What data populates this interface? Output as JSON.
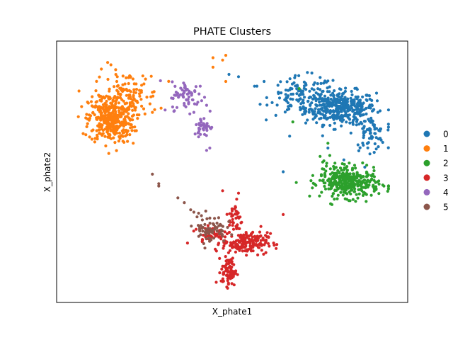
{
  "chart_data": {
    "type": "scatter",
    "title": "PHATE Clusters",
    "xlabel": "X_phate1",
    "ylabel": "X_phate2",
    "xlim": [
      -0.05,
      1.05
    ],
    "ylim": [
      -0.05,
      1.05
    ],
    "grid": false,
    "legend_position": "right",
    "series": [
      {
        "name": "0",
        "color": "#1f77b4",
        "clusters": [
          {
            "cx": 0.84,
            "cy": 0.77,
            "sx": 0.055,
            "sy": 0.035,
            "n": 380
          },
          {
            "cx": 0.72,
            "cy": 0.82,
            "sx": 0.05,
            "sy": 0.04,
            "n": 120
          },
          {
            "cx": 0.93,
            "cy": 0.66,
            "sx": 0.025,
            "sy": 0.035,
            "n": 70
          }
        ],
        "points": [
          [
            0.6,
            0.88
          ],
          [
            0.57,
            0.86
          ],
          [
            0.52,
            0.9
          ],
          [
            0.49,
            0.91
          ],
          [
            0.68,
            0.65
          ],
          [
            0.66,
            0.5
          ],
          [
            0.85,
            0.55
          ],
          [
            0.8,
            0.6
          ]
        ]
      },
      {
        "name": "1",
        "color": "#ff7f0e",
        "clusters": [
          {
            "cx": 0.12,
            "cy": 0.72,
            "sx": 0.035,
            "sy": 0.05,
            "n": 360
          },
          {
            "cx": 0.17,
            "cy": 0.82,
            "sx": 0.05,
            "sy": 0.05,
            "n": 120
          }
        ],
        "points": [
          [
            0.11,
            0.96
          ],
          [
            0.12,
            0.95
          ],
          [
            0.14,
            0.9
          ],
          [
            0.44,
            0.98
          ],
          [
            0.48,
            0.99
          ],
          [
            0.47,
            0.97
          ],
          [
            0.44,
            0.94
          ],
          [
            0.48,
            0.88
          ],
          [
            0.19,
            0.62
          ],
          [
            0.25,
            0.75
          ]
        ]
      },
      {
        "name": "2",
        "color": "#2ca02c",
        "clusters": [
          {
            "cx": 0.87,
            "cy": 0.45,
            "sx": 0.045,
            "sy": 0.03,
            "n": 300
          },
          {
            "cx": 0.82,
            "cy": 0.49,
            "sx": 0.03,
            "sy": 0.03,
            "n": 60
          }
        ],
        "points": [
          [
            0.8,
            0.62
          ],
          [
            0.69,
            0.71
          ],
          [
            0.71,
            0.85
          ]
        ]
      },
      {
        "name": "3",
        "color": "#d62728",
        "clusters": [
          {
            "cx": 0.54,
            "cy": 0.2,
            "sx": 0.035,
            "sy": 0.022,
            "n": 180
          },
          {
            "cx": 0.49,
            "cy": 0.08,
            "sx": 0.012,
            "sy": 0.03,
            "n": 80
          },
          {
            "cx": 0.51,
            "cy": 0.3,
            "sx": 0.01,
            "sy": 0.04,
            "n": 40
          },
          {
            "cx": 0.44,
            "cy": 0.24,
            "sx": 0.03,
            "sy": 0.02,
            "n": 40
          }
        ],
        "points": [
          [
            0.36,
            0.2
          ],
          [
            0.62,
            0.24
          ],
          [
            0.66,
            0.32
          ],
          [
            0.63,
            0.2
          ],
          [
            0.59,
            0.27
          ],
          [
            0.58,
            0.15
          ],
          [
            0.47,
            0.42
          ],
          [
            0.52,
            0.41
          ]
        ]
      },
      {
        "name": "4",
        "color": "#9467bd",
        "clusters": [
          {
            "cx": 0.36,
            "cy": 0.82,
            "sx": 0.025,
            "sy": 0.03,
            "n": 60
          },
          {
            "cx": 0.41,
            "cy": 0.69,
            "sx": 0.015,
            "sy": 0.02,
            "n": 40
          }
        ],
        "points": [
          [
            0.29,
            0.76
          ],
          [
            0.31,
            0.81
          ],
          [
            0.4,
            0.86
          ],
          [
            0.42,
            0.59
          ],
          [
            0.43,
            0.6
          ],
          [
            0.42,
            0.78
          ],
          [
            0.38,
            0.75
          ],
          [
            0.35,
            0.78
          ]
        ]
      },
      {
        "name": "5",
        "color": "#8c564b",
        "clusters": [
          {
            "cx": 0.43,
            "cy": 0.26,
            "sx": 0.025,
            "sy": 0.03,
            "n": 70
          }
        ],
        "points": [
          [
            0.25,
            0.49
          ],
          [
            0.27,
            0.44
          ],
          [
            0.27,
            0.45
          ],
          [
            0.33,
            0.39
          ],
          [
            0.35,
            0.37
          ],
          [
            0.37,
            0.34
          ],
          [
            0.38,
            0.33
          ],
          [
            0.39,
            0.31
          ]
        ]
      }
    ]
  }
}
